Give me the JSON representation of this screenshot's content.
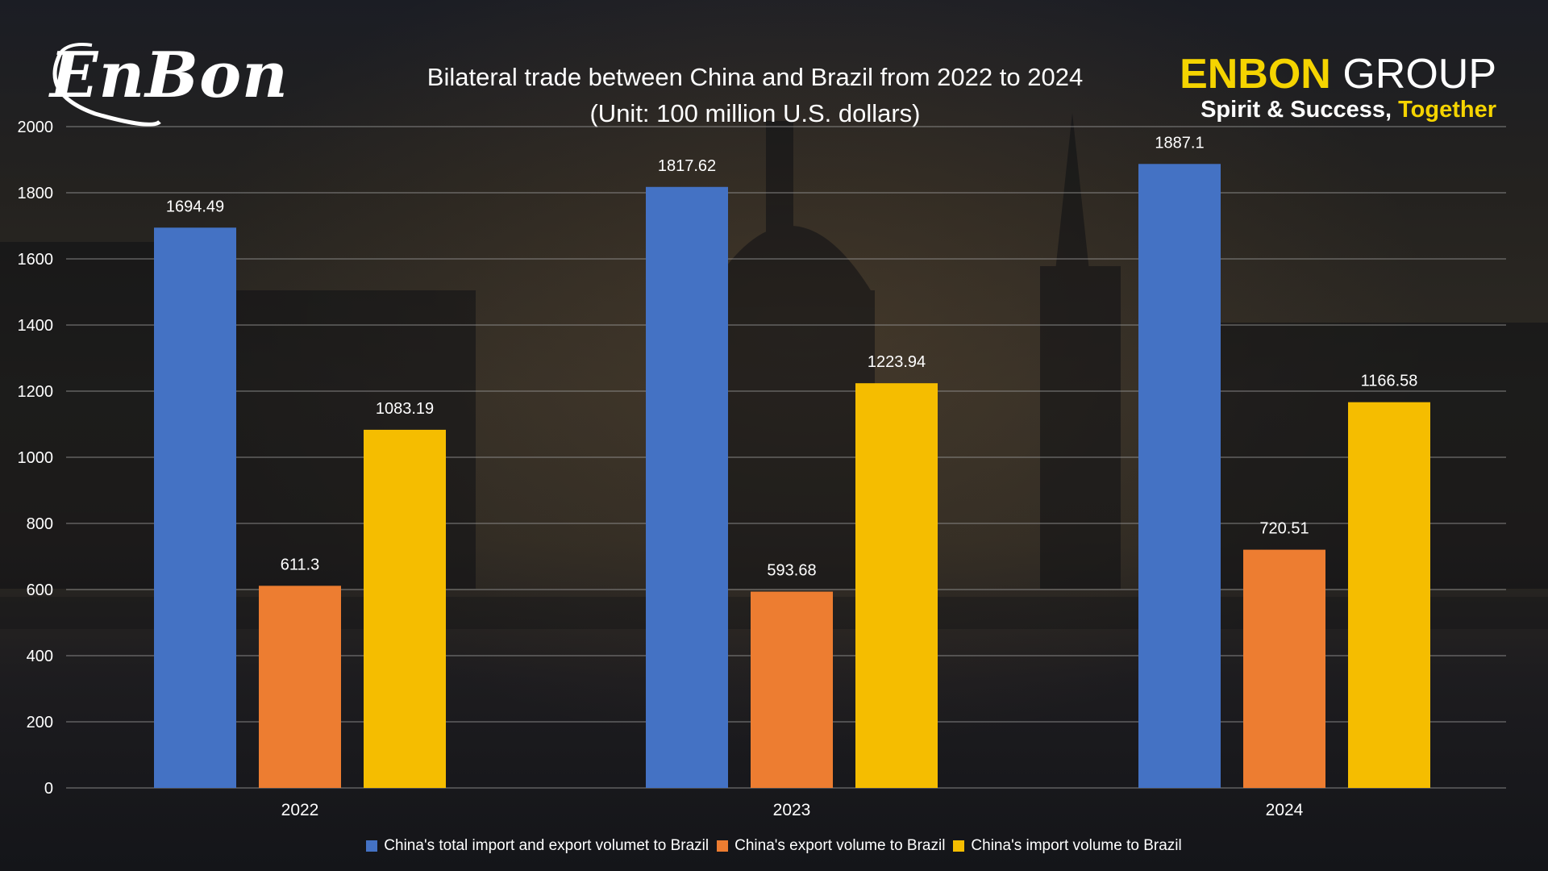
{
  "branding": {
    "logo_text": "EnBon",
    "company_name": "ENBON",
    "company_suffix": "GROUP",
    "tagline_main": "Spirit & Success,",
    "tagline_highlight": "Together",
    "accent_color": "#f5d400"
  },
  "chart_data": {
    "type": "bar",
    "title": "Bilateral trade between China and Brazil from 2022 to 2024",
    "subtitle": "(Unit: 100 million U.S. dollars)",
    "categories": [
      "2022",
      "2023",
      "2024"
    ],
    "ylim": [
      0,
      2000
    ],
    "yticks": [
      0,
      200,
      400,
      600,
      800,
      1000,
      1200,
      1400,
      1600,
      1800,
      2000
    ],
    "grid": true,
    "legend_position": "bottom",
    "series": [
      {
        "name": "China's total import and export volumet to Brazil",
        "color": "#4472c4",
        "values": [
          1694.49,
          1817.62,
          1887.1
        ],
        "labels": [
          "1694.49",
          "1817.62",
          "1887.1"
        ]
      },
      {
        "name": "China's export volume to Brazil",
        "color": "#ed7d31",
        "values": [
          611.3,
          593.68,
          720.51
        ],
        "labels": [
          "611.3",
          "593.68",
          "720.51"
        ]
      },
      {
        "name": "China's import volume to Brazil",
        "color": "#f5bd00",
        "values": [
          1083.19,
          1223.94,
          1166.58
        ],
        "labels": [
          "1083.19",
          "1223.94",
          "1166.58"
        ]
      }
    ]
  }
}
